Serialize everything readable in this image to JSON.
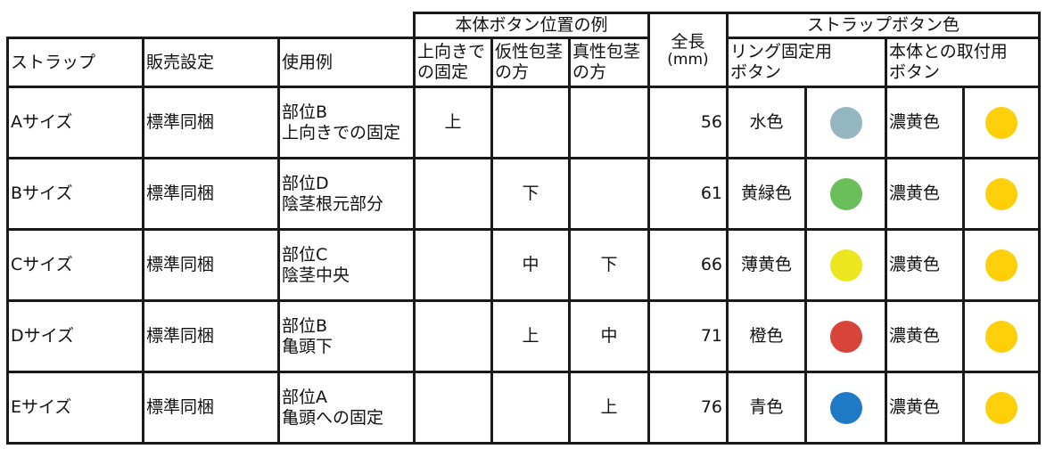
{
  "header": {
    "group_position": "本体ボタン位置の例",
    "length": "全長",
    "length_unit": "(mm)",
    "group_color": "ストラップボタン色",
    "strap": "ストラップ",
    "sales": "販売設定",
    "usage": "使用例",
    "pos_up_1": "上向きで",
    "pos_up_2": "の固定",
    "pos_false_1": "仮性包茎",
    "pos_false_2": "の方",
    "pos_true_1": "真性包茎",
    "pos_true_2": "の方",
    "ring_1": "リング固定用",
    "ring_2": "ボタン",
    "body_1": "本体との取付用",
    "body_2": "ボタン"
  },
  "rows": [
    {
      "strap": "Aサイズ",
      "sales": "標準同梱",
      "usage_1": "部位B",
      "usage_2": "上向きでの固定",
      "up": "上",
      "false": "",
      "true": "",
      "length": "56",
      "ring_color": "水色",
      "ring_hex": "#94b6c0",
      "body_color": "濃黄色",
      "body_hex": "#fdd00a"
    },
    {
      "strap": "Bサイズ",
      "sales": "標準同梱",
      "usage_1": "部位D",
      "usage_2": "陰茎根元部分",
      "up": "",
      "false": "下",
      "true": "",
      "length": "61",
      "ring_color": "黄緑色",
      "ring_hex": "#6abf5a",
      "body_color": "濃黄色",
      "body_hex": "#fdd00a"
    },
    {
      "strap": "Cサイズ",
      "sales": "標準同梱",
      "usage_1": "部位C",
      "usage_2": "陰茎中央",
      "up": "",
      "false": "中",
      "true": "下",
      "length": "66",
      "ring_color": "薄黄色",
      "ring_hex": "#ebe61e",
      "body_color": "濃黄色",
      "body_hex": "#fdd00a"
    },
    {
      "strap": "Dサイズ",
      "sales": "標準同梱",
      "usage_1": "部位B",
      "usage_2": "亀頭下",
      "up": "",
      "false": "上",
      "true": "中",
      "length": "71",
      "ring_color": "橙色",
      "ring_hex": "#d9443a",
      "body_color": "濃黄色",
      "body_hex": "#fdd00a"
    },
    {
      "strap": "Eサイズ",
      "sales": "標準同梱",
      "usage_1": "部位A",
      "usage_2": "亀頭への固定",
      "up": "",
      "false": "",
      "true": "上",
      "length": "76",
      "ring_color": "青色",
      "ring_hex": "#1e7ac4",
      "body_color": "濃黄色",
      "body_hex": "#fdd00a"
    }
  ]
}
